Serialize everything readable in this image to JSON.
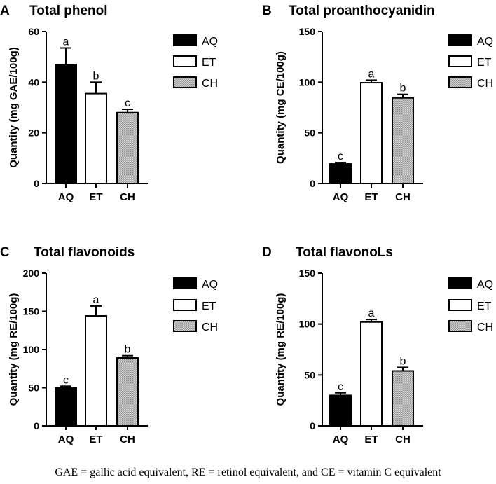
{
  "caption": "GAE = gallic acid equivalent, RE = retinol equivalent, and CE = vitamin C equivalent",
  "colors": {
    "AQ": "#000000",
    "ET": "#ffffff",
    "CH": "#b8b8b8"
  },
  "chart_data": [
    {
      "panel": "A",
      "type": "bar",
      "title": "Total phenol",
      "ylabel": "Quantity (mg GAE/100g)",
      "categories": [
        "AQ",
        "ET",
        "CH"
      ],
      "values": [
        47,
        35.5,
        28
      ],
      "errors": [
        6.5,
        4.5,
        1.3
      ],
      "significance": [
        "a",
        "b",
        "c"
      ],
      "ylim": [
        0,
        60
      ],
      "yticks": [
        0,
        20,
        40,
        60
      ],
      "legend": [
        "AQ",
        "ET",
        "CH"
      ]
    },
    {
      "panel": "B",
      "type": "bar",
      "title": "Total proanthocyanidin",
      "ylabel": "Quantity (mg CE/100g)",
      "categories": [
        "AQ",
        "ET",
        "CH"
      ],
      "values": [
        19.5,
        99.5,
        84.5
      ],
      "errors": [
        1.2,
        2.5,
        3.5
      ],
      "significance": [
        "c",
        "a",
        "b"
      ],
      "ylim": [
        0,
        150
      ],
      "yticks": [
        0,
        50,
        100,
        150
      ],
      "legend": [
        "AQ",
        "ET",
        "CH"
      ]
    },
    {
      "panel": "C",
      "type": "bar",
      "title": "Total flavonoids",
      "ylabel": "Quantity (mg RE/100g)",
      "categories": [
        "AQ",
        "ET",
        "CH"
      ],
      "values": [
        50,
        144,
        89
      ],
      "errors": [
        2,
        13,
        3
      ],
      "significance": [
        "c",
        "a",
        "b"
      ],
      "ylim": [
        0,
        200
      ],
      "yticks": [
        0,
        50,
        100,
        150,
        200
      ],
      "legend": [
        "AQ",
        "ET",
        "CH"
      ]
    },
    {
      "panel": "D",
      "type": "bar",
      "title": "Total flavonoLs",
      "ylabel": "Quantity (mg RE/100g)",
      "categories": [
        "AQ",
        "ET",
        "CH"
      ],
      "values": [
        30,
        102,
        54
      ],
      "errors": [
        2.5,
        2.5,
        3.5
      ],
      "significance": [
        "c",
        "a",
        "b"
      ],
      "ylim": [
        0,
        150
      ],
      "yticks": [
        0,
        50,
        100,
        150
      ],
      "legend": [
        "AQ",
        "ET",
        "CH"
      ]
    }
  ]
}
